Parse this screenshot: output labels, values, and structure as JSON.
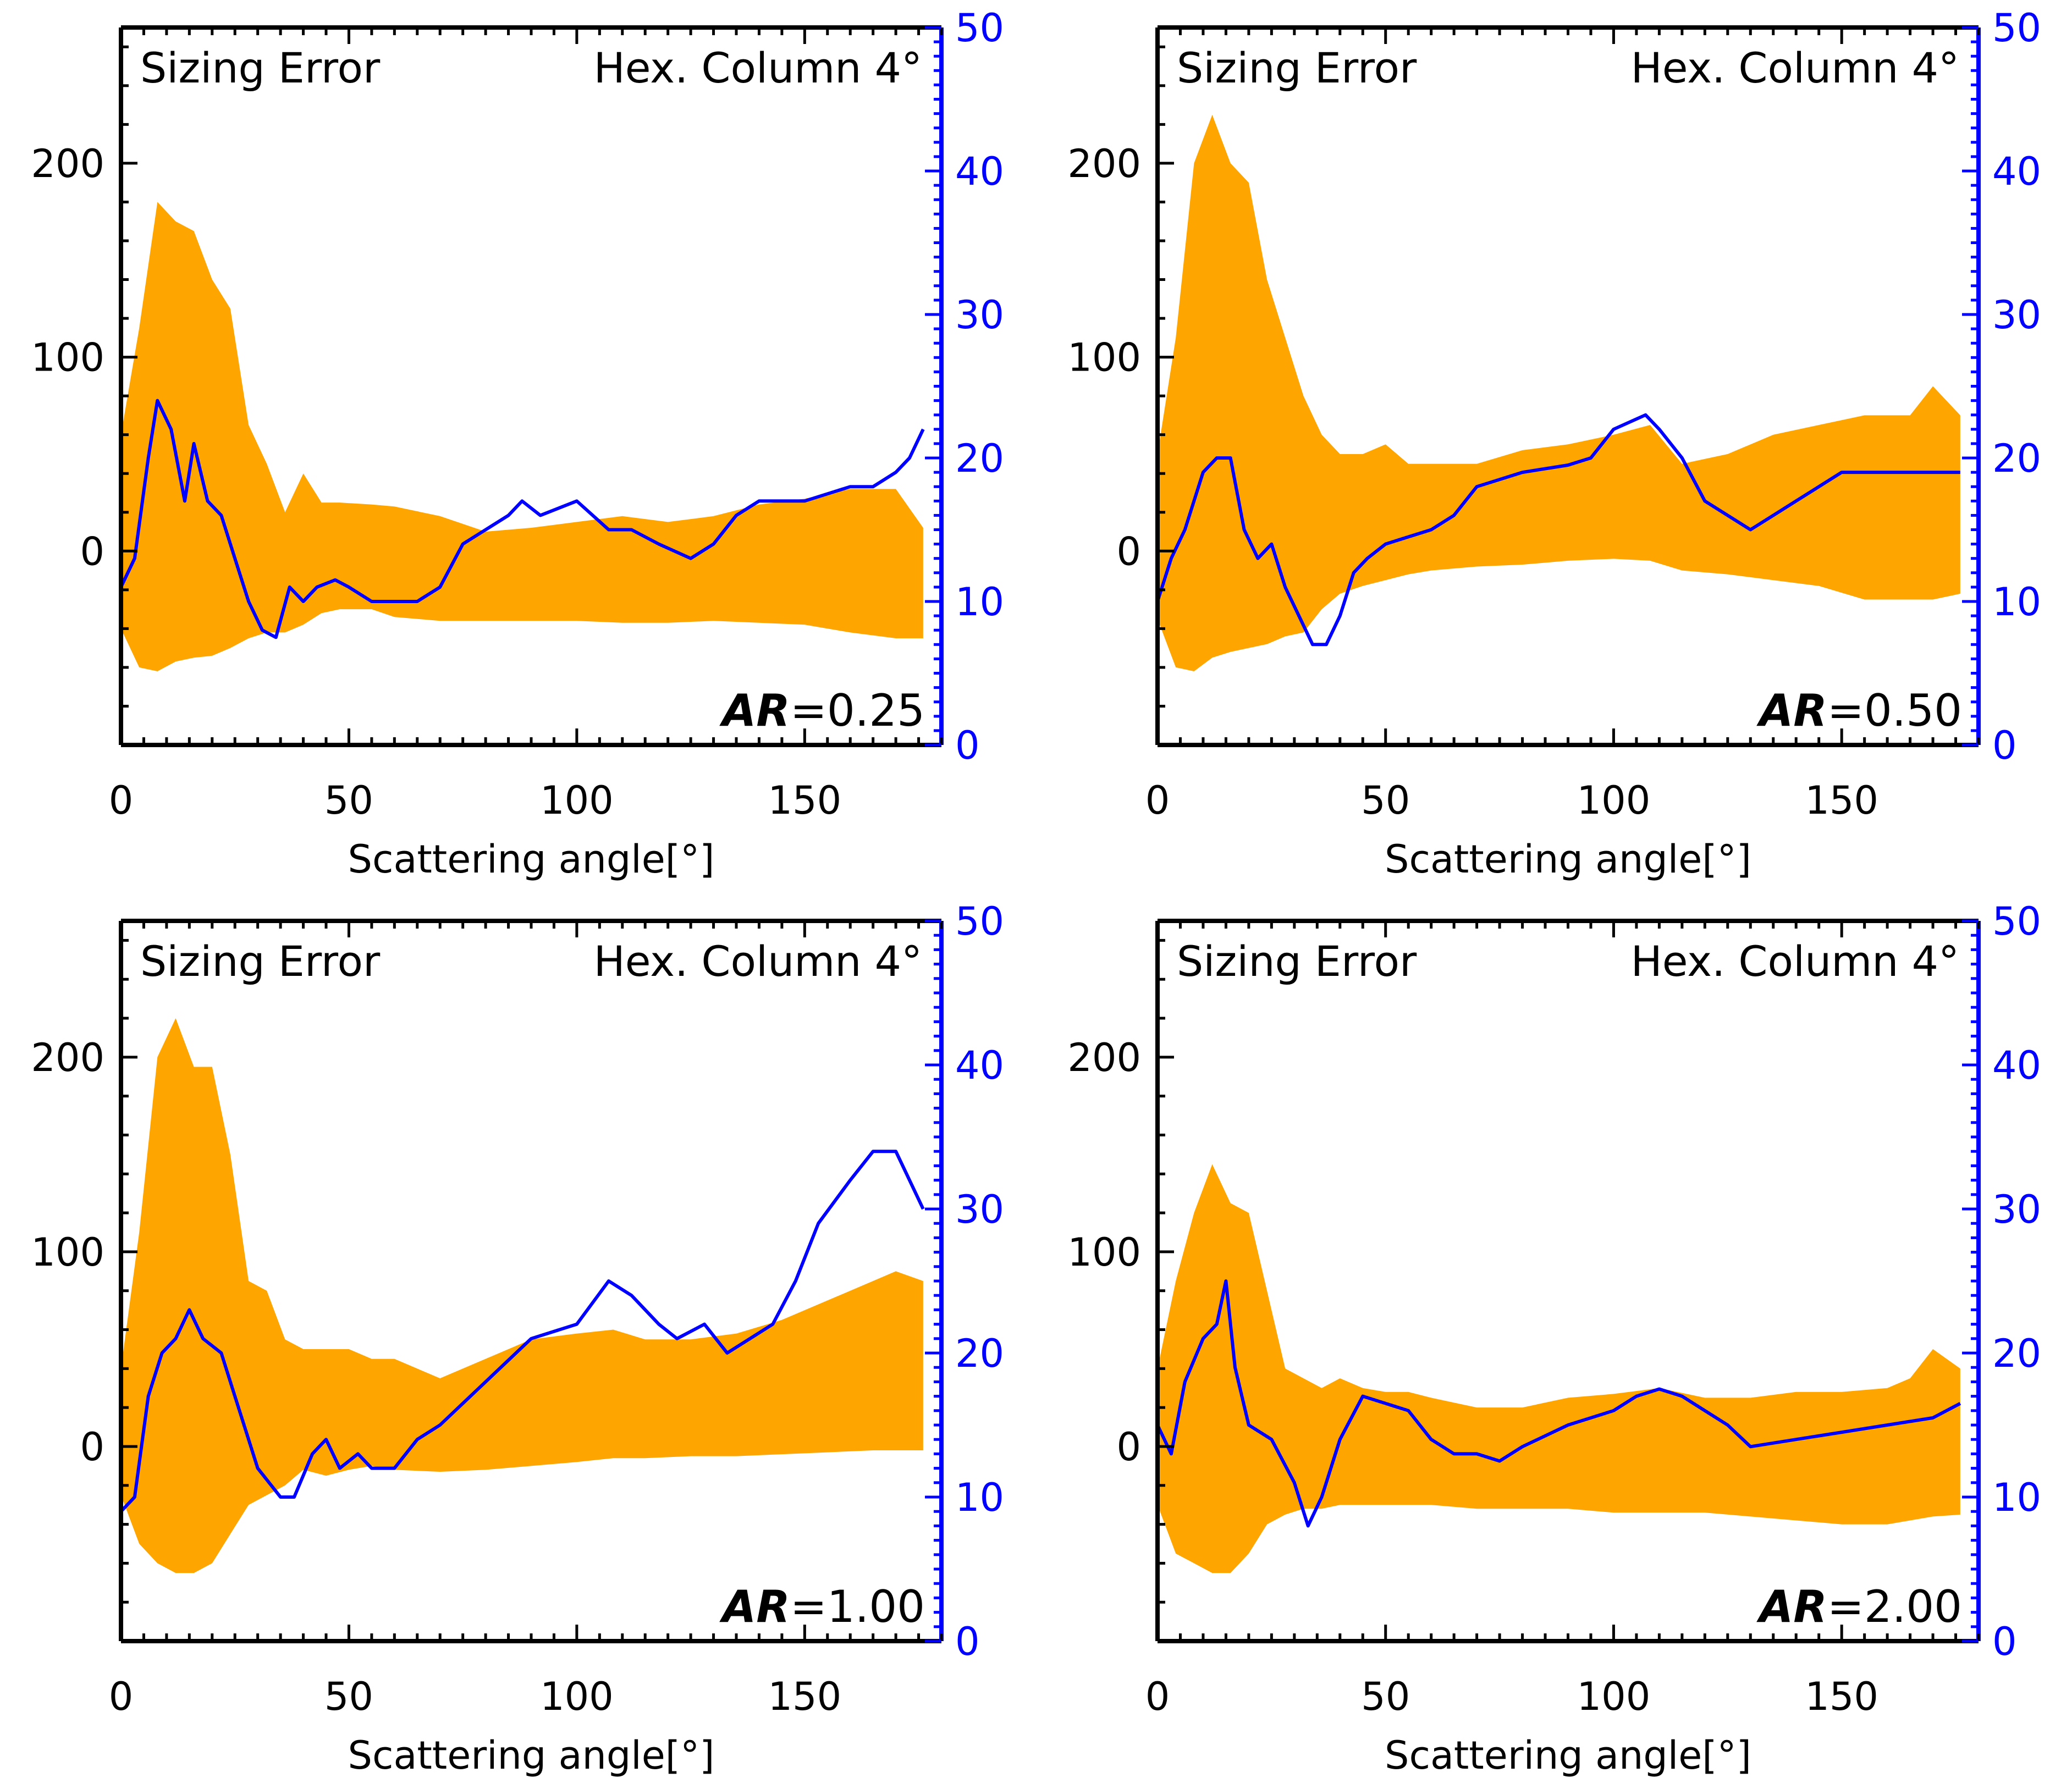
{
  "figure": {
    "panel_title_left": "Sizing Error",
    "panel_title_right": "Hex. Column 4°",
    "xlabel": "Scattering angle[°]",
    "colors": {
      "band": "#FFA500",
      "line": "#0000FF",
      "axis": "#000000",
      "right_axis": "#0000FF"
    }
  },
  "chart_data": [
    {
      "type": "area",
      "title": "Sizing Error",
      "subtitle": "Hex. Column 4°",
      "annotation": {
        "prefix": "AR",
        "value": "=0.25"
      },
      "xlabel": "Scattering angle[°]",
      "xlim": [
        0,
        180
      ],
      "ylim": [
        -100,
        270
      ],
      "y2lim": [
        0,
        50
      ],
      "xticks": [
        0,
        50,
        100,
        150
      ],
      "yticks": [
        0,
        100,
        200
      ],
      "y2ticks": [
        0,
        10,
        20,
        30,
        40,
        50
      ],
      "band": {
        "x": [
          0,
          4,
          8,
          12,
          16,
          20,
          24,
          28,
          32,
          36,
          40,
          44,
          48,
          55,
          60,
          70,
          80,
          90,
          100,
          110,
          120,
          130,
          140,
          150,
          160,
          170,
          176
        ],
        "upper": [
          60,
          115,
          180,
          170,
          165,
          140,
          125,
          65,
          45,
          20,
          40,
          25,
          25,
          24,
          23,
          18,
          10,
          12,
          15,
          18,
          15,
          18,
          24,
          27,
          32,
          32,
          12
        ],
        "lower": [
          -40,
          -60,
          -62,
          -57,
          -55,
          -54,
          -50,
          -45,
          -42,
          -42,
          -38,
          -32,
          -30,
          -30,
          -34,
          -36,
          -36,
          -36,
          -36,
          -37,
          -37,
          -36,
          -37,
          -38,
          -42,
          -45,
          -45
        ]
      },
      "line": {
        "x": [
          0,
          3,
          6,
          8,
          11,
          14,
          16,
          19,
          22,
          25,
          28,
          31,
          34,
          37,
          40,
          43,
          47,
          50,
          55,
          60,
          65,
          70,
          75,
          80,
          85,
          88,
          92,
          100,
          107,
          112,
          118,
          125,
          130,
          135,
          140,
          150,
          160,
          165,
          170,
          173,
          176
        ],
        "values": [
          11,
          13,
          20,
          24,
          22,
          17,
          21,
          17,
          16,
          13,
          10,
          8,
          7.5,
          11,
          10,
          11,
          11.5,
          11,
          10,
          10,
          10,
          11,
          14,
          15,
          16,
          17,
          16,
          17,
          15,
          15,
          14,
          13,
          14,
          16,
          17,
          17,
          18,
          18,
          19,
          20,
          22
        ]
      }
    },
    {
      "type": "area",
      "title": "Sizing Error",
      "subtitle": "Hex. Column 4°",
      "annotation": {
        "prefix": "AR",
        "value": "=0.50"
      },
      "xlabel": "Scattering angle[°]",
      "xlim": [
        0,
        180
      ],
      "ylim": [
        -100,
        270
      ],
      "y2lim": [
        0,
        50
      ],
      "xticks": [
        0,
        50,
        100,
        150
      ],
      "yticks": [
        0,
        100,
        200
      ],
      "y2ticks": [
        0,
        10,
        20,
        30,
        40,
        50
      ],
      "band": {
        "x": [
          0,
          4,
          8,
          12,
          16,
          20,
          24,
          28,
          32,
          36,
          40,
          45,
          50,
          55,
          60,
          70,
          80,
          90,
          100,
          108,
          115,
          125,
          135,
          145,
          155,
          165,
          170,
          176
        ],
        "upper": [
          50,
          110,
          200,
          225,
          200,
          190,
          140,
          110,
          80,
          60,
          50,
          50,
          55,
          45,
          45,
          45,
          52,
          55,
          60,
          65,
          45,
          50,
          60,
          65,
          70,
          70,
          85,
          70
        ],
        "lower": [
          -35,
          -60,
          -62,
          -55,
          -52,
          -50,
          -48,
          -44,
          -42,
          -30,
          -22,
          -18,
          -15,
          -12,
          -10,
          -8,
          -7,
          -5,
          -4,
          -5,
          -10,
          -12,
          -15,
          -18,
          -25,
          -25,
          -25,
          -22
        ]
      },
      "line": {
        "x": [
          0,
          3,
          6,
          10,
          13,
          16,
          19,
          22,
          25,
          28,
          31,
          34,
          37,
          40,
          43,
          46,
          50,
          55,
          60,
          65,
          70,
          80,
          90,
          95,
          100,
          107,
          110,
          115,
          120,
          125,
          130,
          135,
          140,
          145,
          150,
          160,
          170,
          176
        ],
        "values": [
          10,
          13,
          15,
          19,
          20,
          20,
          15,
          13,
          14,
          11,
          9,
          7,
          7,
          9,
          12,
          13,
          14,
          14.5,
          15,
          16,
          18,
          19,
          19.5,
          20,
          22,
          23,
          22,
          20,
          17,
          16,
          15,
          16,
          17,
          18,
          19,
          19,
          19,
          19
        ]
      }
    },
    {
      "type": "area",
      "title": "Sizing Error",
      "subtitle": "Hex. Column 4°",
      "annotation": {
        "prefix": "AR",
        "value": "=1.00"
      },
      "xlabel": "Scattering angle[°]",
      "xlim": [
        0,
        180
      ],
      "ylim": [
        -100,
        270
      ],
      "y2lim": [
        0,
        50
      ],
      "xticks": [
        0,
        50,
        100,
        150
      ],
      "yticks": [
        0,
        100,
        200
      ],
      "y2ticks": [
        0,
        10,
        20,
        30,
        40,
        50
      ],
      "band": {
        "x": [
          0,
          4,
          8,
          12,
          16,
          20,
          24,
          28,
          32,
          36,
          40,
          45,
          50,
          55,
          60,
          70,
          80,
          90,
          100,
          108,
          115,
          125,
          135,
          145,
          155,
          165,
          170,
          176
        ],
        "upper": [
          40,
          110,
          200,
          220,
          195,
          195,
          150,
          85,
          80,
          55,
          50,
          50,
          50,
          45,
          45,
          35,
          45,
          55,
          58,
          60,
          55,
          55,
          58,
          65,
          75,
          85,
          90,
          85
        ],
        "lower": [
          -25,
          -50,
          -60,
          -65,
          -65,
          -60,
          -45,
          -30,
          -25,
          -20,
          -12,
          -15,
          -12,
          -10,
          -12,
          -13,
          -12,
          -10,
          -8,
          -6,
          -6,
          -5,
          -5,
          -4,
          -3,
          -2,
          -2,
          -2
        ]
      },
      "line": {
        "x": [
          0,
          3,
          6,
          9,
          12,
          15,
          18,
          22,
          25,
          30,
          35,
          38,
          42,
          45,
          48,
          52,
          55,
          60,
          65,
          70,
          80,
          90,
          100,
          107,
          112,
          118,
          122,
          128,
          133,
          138,
          143,
          148,
          153,
          160,
          165,
          170,
          173,
          176
        ],
        "values": [
          9,
          10,
          17,
          20,
          21,
          23,
          21,
          20,
          17,
          12,
          10,
          10,
          13,
          14,
          12,
          13,
          12,
          12,
          14,
          15,
          18,
          21,
          22,
          25,
          24,
          22,
          21,
          22,
          20,
          21,
          22,
          25,
          29,
          32,
          34,
          34,
          32,
          30
        ]
      }
    },
    {
      "type": "area",
      "title": "Sizing Error",
      "subtitle": "Hex. Column 4°",
      "annotation": {
        "prefix": "AR",
        "value": "=2.00"
      },
      "xlabel": "Scattering angle[°]",
      "xlim": [
        0,
        180
      ],
      "ylim": [
        -100,
        270
      ],
      "y2lim": [
        0,
        50
      ],
      "xticks": [
        0,
        50,
        100,
        150
      ],
      "yticks": [
        0,
        100,
        200
      ],
      "y2ticks": [
        0,
        10,
        20,
        30,
        40,
        50
      ],
      "band": {
        "x": [
          0,
          4,
          8,
          12,
          16,
          20,
          24,
          28,
          32,
          36,
          40,
          45,
          50,
          55,
          60,
          70,
          80,
          90,
          100,
          110,
          120,
          130,
          140,
          150,
          160,
          165,
          170,
          176
        ],
        "upper": [
          40,
          85,
          120,
          145,
          125,
          120,
          80,
          40,
          35,
          30,
          35,
          30,
          28,
          28,
          25,
          20,
          20,
          25,
          27,
          30,
          25,
          25,
          28,
          28,
          30,
          35,
          50,
          40
        ],
        "lower": [
          -30,
          -55,
          -60,
          -65,
          -65,
          -55,
          -40,
          -35,
          -32,
          -32,
          -30,
          -30,
          -30,
          -30,
          -30,
          -32,
          -32,
          -32,
          -34,
          -34,
          -34,
          -36,
          -38,
          -40,
          -40,
          -38,
          -36,
          -35
        ]
      },
      "line": {
        "x": [
          0,
          3,
          6,
          10,
          13,
          15,
          17,
          20,
          25,
          30,
          33,
          36,
          40,
          45,
          50,
          55,
          60,
          65,
          70,
          75,
          80,
          90,
          100,
          105,
          110,
          115,
          120,
          125,
          130,
          140,
          150,
          160,
          170,
          176
        ],
        "values": [
          15,
          13,
          18,
          21,
          22,
          25,
          19,
          15,
          14,
          11,
          8,
          10,
          14,
          17,
          16.5,
          16,
          14,
          13,
          13,
          12.5,
          13.5,
          15,
          16,
          17,
          17.5,
          17,
          16,
          15,
          13.5,
          14,
          14.5,
          15,
          15.5,
          16.5
        ]
      }
    }
  ]
}
